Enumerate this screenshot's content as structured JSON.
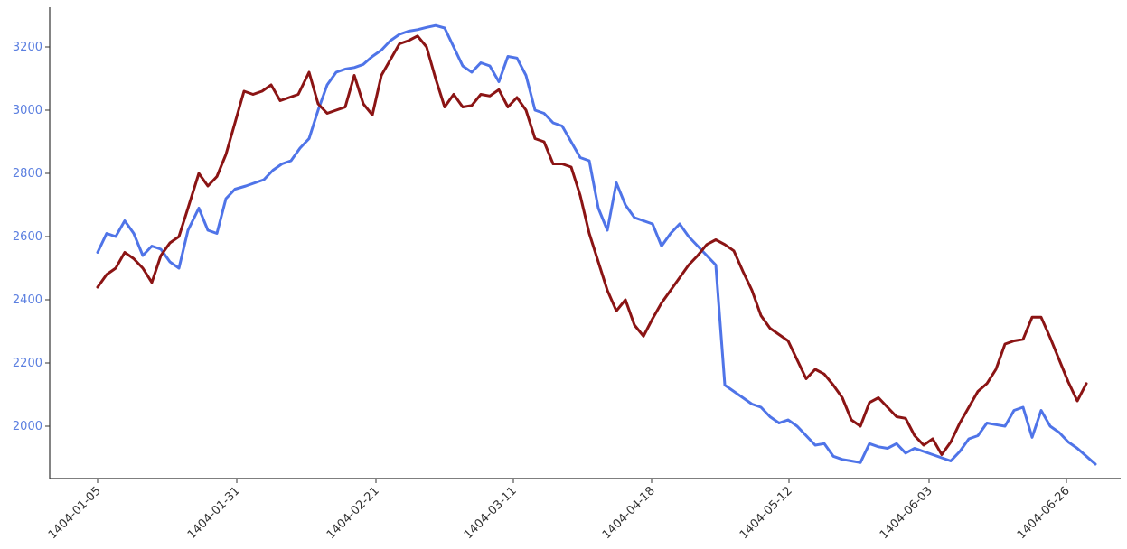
{
  "chart_data": {
    "type": "line",
    "x_range": [
      0,
      1247
    ],
    "ylim": [
      1840,
      3290
    ],
    "y_ticks": [
      2000,
      2200,
      2400,
      2600,
      2800,
      3000,
      3200
    ],
    "x_tick_labels": [
      "1404-01-05",
      "1404-01-31",
      "1404-02-21",
      "1404-03-11",
      "1404-04-18",
      "1404-05-12",
      "1404-06-03",
      "1404-06-26"
    ],
    "grid": false,
    "colors": {
      "series_blue": "#4f74e8",
      "series_red": "#8b1414",
      "axis": "#333333",
      "ytick": "#5b7fe0"
    },
    "series": [
      {
        "color": "#4f74e8",
        "points": [
          [
            108,
            2550
          ],
          [
            118,
            2610
          ],
          [
            128,
            2600
          ],
          [
            138,
            2650
          ],
          [
            148,
            2610
          ],
          [
            158,
            2540
          ],
          [
            168,
            2570
          ],
          [
            178,
            2560
          ],
          [
            188,
            2520
          ],
          [
            198,
            2500
          ],
          [
            208,
            2620
          ],
          [
            220,
            2690
          ],
          [
            230,
            2620
          ],
          [
            240,
            2610
          ],
          [
            250,
            2720
          ],
          [
            260,
            2750
          ],
          [
            272,
            2760
          ],
          [
            282,
            2770
          ],
          [
            292,
            2780
          ],
          [
            302,
            2810
          ],
          [
            312,
            2830
          ],
          [
            322,
            2840
          ],
          [
            332,
            2880
          ],
          [
            342,
            2910
          ],
          [
            352,
            3000
          ],
          [
            362,
            3080
          ],
          [
            372,
            3120
          ],
          [
            382,
            3130
          ],
          [
            392,
            3135
          ],
          [
            402,
            3145
          ],
          [
            412,
            3170
          ],
          [
            422,
            3190
          ],
          [
            432,
            3220
          ],
          [
            442,
            3240
          ],
          [
            452,
            3250
          ],
          [
            462,
            3255
          ],
          [
            472,
            3262
          ],
          [
            482,
            3268
          ],
          [
            492,
            3260
          ],
          [
            502,
            3200
          ],
          [
            512,
            3140
          ],
          [
            522,
            3120
          ],
          [
            532,
            3150
          ],
          [
            542,
            3140
          ],
          [
            552,
            3090
          ],
          [
            562,
            3170
          ],
          [
            572,
            3165
          ],
          [
            582,
            3110
          ],
          [
            592,
            3000
          ],
          [
            602,
            2990
          ],
          [
            612,
            2960
          ],
          [
            622,
            2950
          ],
          [
            632,
            2900
          ],
          [
            642,
            2850
          ],
          [
            652,
            2840
          ],
          [
            662,
            2690
          ],
          [
            672,
            2620
          ],
          [
            682,
            2770
          ],
          [
            692,
            2700
          ],
          [
            702,
            2660
          ],
          [
            712,
            2650
          ],
          [
            722,
            2640
          ],
          [
            732,
            2570
          ],
          [
            742,
            2610
          ],
          [
            752,
            2640
          ],
          [
            762,
            2600
          ],
          [
            772,
            2570
          ],
          [
            782,
            2540
          ],
          [
            792,
            2510
          ],
          [
            802,
            2130
          ],
          [
            812,
            2110
          ],
          [
            822,
            2090
          ],
          [
            832,
            2070
          ],
          [
            842,
            2060
          ],
          [
            852,
            2030
          ],
          [
            862,
            2010
          ],
          [
            872,
            2020
          ],
          [
            882,
            2000
          ],
          [
            892,
            1970
          ],
          [
            902,
            1940
          ],
          [
            912,
            1945
          ],
          [
            922,
            1905
          ],
          [
            932,
            1895
          ],
          [
            942,
            1890
          ],
          [
            952,
            1885
          ],
          [
            962,
            1945
          ],
          [
            972,
            1935
          ],
          [
            982,
            1930
          ],
          [
            992,
            1945
          ],
          [
            1002,
            1915
          ],
          [
            1012,
            1930
          ],
          [
            1022,
            1920
          ],
          [
            1032,
            1910
          ],
          [
            1042,
            1900
          ],
          [
            1052,
            1890
          ],
          [
            1062,
            1920
          ],
          [
            1072,
            1960
          ],
          [
            1082,
            1970
          ],
          [
            1092,
            2010
          ],
          [
            1102,
            2005
          ],
          [
            1112,
            2000
          ],
          [
            1122,
            2050
          ],
          [
            1132,
            2060
          ],
          [
            1142,
            1965
          ],
          [
            1152,
            2050
          ],
          [
            1162,
            2000
          ],
          [
            1172,
            1980
          ],
          [
            1182,
            1950
          ],
          [
            1192,
            1930
          ],
          [
            1202,
            1905
          ],
          [
            1212,
            1880
          ]
        ]
      },
      {
        "color": "#8b1414",
        "points": [
          [
            108,
            2440
          ],
          [
            118,
            2480
          ],
          [
            128,
            2500
          ],
          [
            138,
            2550
          ],
          [
            148,
            2530
          ],
          [
            158,
            2500
          ],
          [
            168,
            2455
          ],
          [
            178,
            2540
          ],
          [
            188,
            2580
          ],
          [
            198,
            2600
          ],
          [
            208,
            2690
          ],
          [
            220,
            2800
          ],
          [
            230,
            2760
          ],
          [
            240,
            2790
          ],
          [
            250,
            2860
          ],
          [
            260,
            2960
          ],
          [
            270,
            3060
          ],
          [
            280,
            3050
          ],
          [
            290,
            3060
          ],
          [
            300,
            3080
          ],
          [
            310,
            3030
          ],
          [
            320,
            3040
          ],
          [
            330,
            3050
          ],
          [
            342,
            3120
          ],
          [
            352,
            3020
          ],
          [
            362,
            2990
          ],
          [
            372,
            3000
          ],
          [
            382,
            3010
          ],
          [
            392,
            3110
          ],
          [
            402,
            3020
          ],
          [
            412,
            2985
          ],
          [
            422,
            3110
          ],
          [
            432,
            3160
          ],
          [
            442,
            3210
          ],
          [
            452,
            3220
          ],
          [
            462,
            3235
          ],
          [
            472,
            3200
          ],
          [
            482,
            3100
          ],
          [
            492,
            3010
          ],
          [
            502,
            3050
          ],
          [
            512,
            3010
          ],
          [
            522,
            3015
          ],
          [
            532,
            3050
          ],
          [
            542,
            3045
          ],
          [
            552,
            3065
          ],
          [
            562,
            3010
          ],
          [
            572,
            3040
          ],
          [
            582,
            3000
          ],
          [
            592,
            2910
          ],
          [
            602,
            2900
          ],
          [
            612,
            2830
          ],
          [
            622,
            2830
          ],
          [
            632,
            2820
          ],
          [
            642,
            2730
          ],
          [
            652,
            2610
          ],
          [
            662,
            2520
          ],
          [
            672,
            2430
          ],
          [
            682,
            2365
          ],
          [
            692,
            2400
          ],
          [
            702,
            2320
          ],
          [
            712,
            2285
          ],
          [
            722,
            2340
          ],
          [
            732,
            2390
          ],
          [
            742,
            2430
          ],
          [
            752,
            2470
          ],
          [
            762,
            2510
          ],
          [
            772,
            2540
          ],
          [
            782,
            2575
          ],
          [
            792,
            2590
          ],
          [
            802,
            2575
          ],
          [
            812,
            2555
          ],
          [
            822,
            2490
          ],
          [
            832,
            2430
          ],
          [
            842,
            2350
          ],
          [
            852,
            2310
          ],
          [
            862,
            2290
          ],
          [
            872,
            2270
          ],
          [
            882,
            2210
          ],
          [
            892,
            2150
          ],
          [
            902,
            2180
          ],
          [
            912,
            2165
          ],
          [
            922,
            2130
          ],
          [
            932,
            2090
          ],
          [
            942,
            2020
          ],
          [
            952,
            2000
          ],
          [
            962,
            2075
          ],
          [
            972,
            2090
          ],
          [
            982,
            2060
          ],
          [
            992,
            2030
          ],
          [
            1002,
            2025
          ],
          [
            1012,
            1970
          ],
          [
            1022,
            1940
          ],
          [
            1032,
            1960
          ],
          [
            1042,
            1910
          ],
          [
            1052,
            1950
          ],
          [
            1062,
            2010
          ],
          [
            1072,
            2060
          ],
          [
            1082,
            2110
          ],
          [
            1092,
            2135
          ],
          [
            1102,
            2180
          ],
          [
            1112,
            2260
          ],
          [
            1122,
            2270
          ],
          [
            1132,
            2275
          ],
          [
            1142,
            2345
          ],
          [
            1152,
            2345
          ],
          [
            1162,
            2280
          ],
          [
            1172,
            2210
          ],
          [
            1182,
            2140
          ],
          [
            1192,
            2080
          ],
          [
            1202,
            2135
          ]
        ]
      }
    ]
  }
}
